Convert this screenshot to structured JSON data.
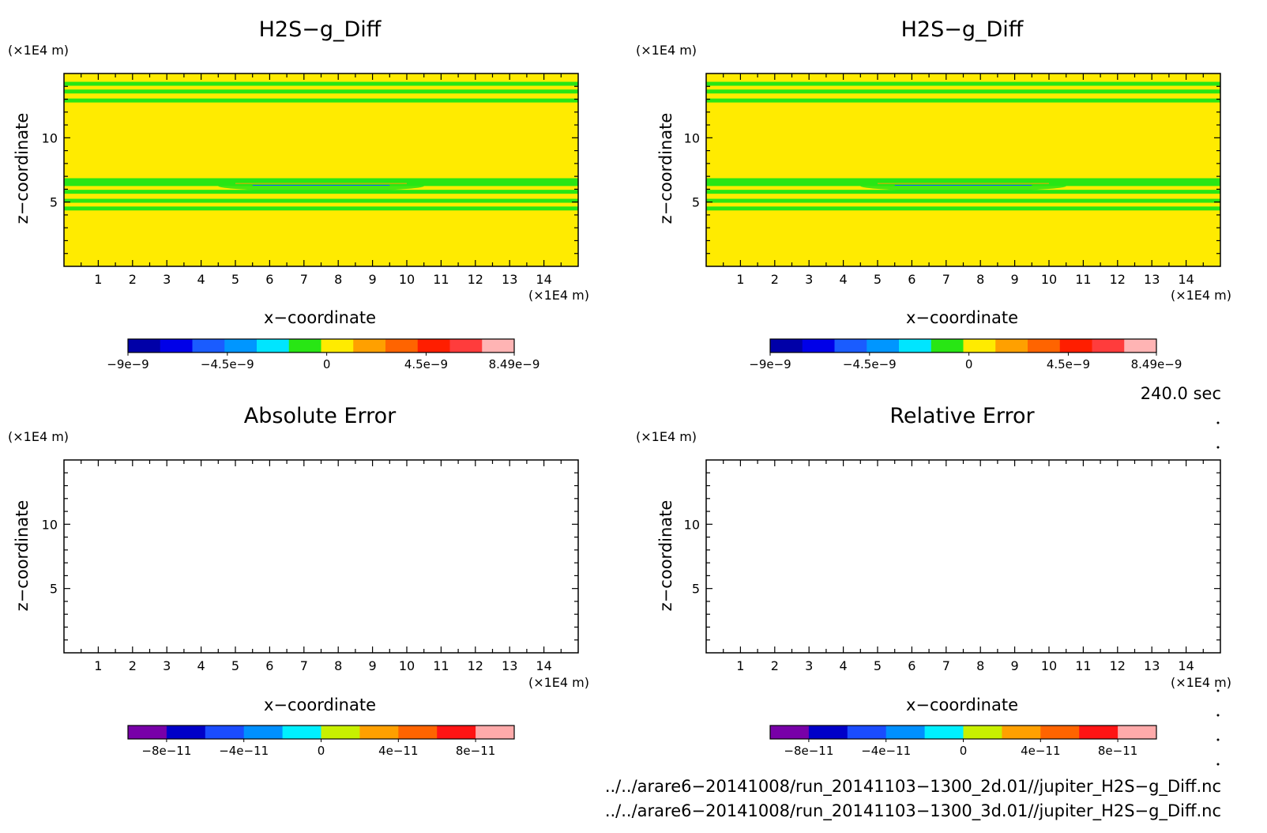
{
  "panels": [
    {
      "title": "H2S−g_Diff",
      "unit_y": "(×1E4 m)",
      "unit_x": "(×1E4 m)",
      "xlabel": "x−coordinate",
      "ylabel": "z−coordinate",
      "colorbar_labels": [
        "−9e−9",
        "−4.5e−9",
        "0",
        "4.5e−9",
        "8.49e−9"
      ]
    },
    {
      "title": "H2S−g_Diff",
      "unit_y": "(×1E4 m)",
      "unit_x": "(×1E4 m)",
      "xlabel": "x−coordinate",
      "ylabel": "z−coordinate",
      "colorbar_labels": [
        "−9e−9",
        "−4.5e−9",
        "0",
        "4.5e−9",
        "8.49e−9"
      ]
    },
    {
      "title": "Absolute Error",
      "unit_y": "(×1E4 m)",
      "unit_x": "(×1E4 m)",
      "xlabel": "x−coordinate",
      "ylabel": "z−coordinate",
      "colorbar_labels": [
        "−8e−11",
        "−4e−11",
        "0",
        "4e−11",
        "8e−11"
      ]
    },
    {
      "title": "Relative Error",
      "unit_y": "(×1E4 m)",
      "unit_x": "(×1E4 m)",
      "xlabel": "x−coordinate",
      "ylabel": "z−coordinate",
      "colorbar_labels": [
        "−8e−11",
        "−4e−11",
        "0",
        "4e−11",
        "8e−11"
      ]
    }
  ],
  "time_label": "240.0 sec",
  "file_paths": [
    "../../arare6−20141008/run_20141103−1300_2d.01//jupiter_H2S−g_Diff.nc",
    "../../arare6−20141008/run_20141103−1300_3d.01//jupiter_H2S−g_Diff.nc"
  ],
  "chart_data": [
    {
      "type": "heatmap",
      "title": "H2S−g_Diff",
      "xlabel": "x−coordinate",
      "ylabel": "z−coordinate",
      "x_unit": "(×1E4 m)",
      "z_unit": "(×1E4 m)",
      "xlim": [
        0,
        15
      ],
      "zlim": [
        0,
        15
      ],
      "x_ticks": [
        1,
        2,
        3,
        4,
        5,
        6,
        7,
        8,
        9,
        10,
        11,
        12,
        13,
        14
      ],
      "z_ticks": [
        5,
        10
      ],
      "background_value": "0",
      "contour_bands_z": [
        4.5,
        5.1,
        5.8,
        6.4,
        6.7,
        12.9,
        13.6,
        14.2
      ],
      "colorbar": {
        "min": -9e-09,
        "max": 8.49e-09,
        "labels": [
          "−9e−9",
          "−4.5e−9",
          "0",
          "4.5e−9",
          "8.49e−9"
        ],
        "colors": [
          "#0000a8",
          "#0000e8",
          "#1a5cff",
          "#0096ff",
          "#00e5ff",
          "#28e614",
          "#ffeb00",
          "#ffa000",
          "#ff6400",
          "#ff1e00",
          "#ff3c3c",
          "#ffb4b4"
        ]
      }
    },
    {
      "type": "heatmap",
      "title": "H2S−g_Diff",
      "xlabel": "x−coordinate",
      "ylabel": "z−coordinate",
      "x_unit": "(×1E4 m)",
      "z_unit": "(×1E4 m)",
      "xlim": [
        0,
        15
      ],
      "zlim": [
        0,
        15
      ],
      "x_ticks": [
        1,
        2,
        3,
        4,
        5,
        6,
        7,
        8,
        9,
        10,
        11,
        12,
        13,
        14
      ],
      "z_ticks": [
        5,
        10
      ],
      "background_value": "0",
      "contour_bands_z": [
        4.5,
        5.1,
        5.8,
        6.4,
        6.7,
        12.9,
        13.6,
        14.2
      ],
      "colorbar": {
        "min": -9e-09,
        "max": 8.49e-09,
        "labels": [
          "−9e−9",
          "−4.5e−9",
          "0",
          "4.5e−9",
          "8.49e−9"
        ],
        "colors": [
          "#0000a8",
          "#0000e8",
          "#1a5cff",
          "#0096ff",
          "#00e5ff",
          "#28e614",
          "#ffeb00",
          "#ffa000",
          "#ff6400",
          "#ff1e00",
          "#ff3c3c",
          "#ffb4b4"
        ]
      }
    },
    {
      "type": "heatmap",
      "title": "Absolute Error",
      "xlabel": "x−coordinate",
      "ylabel": "z−coordinate",
      "x_unit": "(×1E4 m)",
      "z_unit": "(×1E4 m)",
      "xlim": [
        0,
        15
      ],
      "zlim": [
        0,
        15
      ],
      "x_ticks": [
        1,
        2,
        3,
        4,
        5,
        6,
        7,
        8,
        9,
        10,
        11,
        12,
        13,
        14
      ],
      "z_ticks": [
        5,
        10
      ],
      "values": [],
      "colorbar": {
        "min": -1e-10,
        "max": 1e-10,
        "labels": [
          "−8e−11",
          "−4e−11",
          "0",
          "4e−11",
          "8e−11"
        ],
        "colors": [
          "#7800a8",
          "#0000c8",
          "#1a4cff",
          "#0090ff",
          "#00f0ff",
          "#c8f000",
          "#ffa000",
          "#ff6400",
          "#ff1414",
          "#ffaaaa"
        ]
      }
    },
    {
      "type": "heatmap",
      "title": "Relative Error",
      "xlabel": "x−coordinate",
      "ylabel": "z−coordinate",
      "x_unit": "(×1E4 m)",
      "z_unit": "(×1E4 m)",
      "xlim": [
        0,
        15
      ],
      "zlim": [
        0,
        15
      ],
      "x_ticks": [
        1,
        2,
        3,
        4,
        5,
        6,
        7,
        8,
        9,
        10,
        11,
        12,
        13,
        14
      ],
      "z_ticks": [
        5,
        10
      ],
      "values": [],
      "colorbar": {
        "min": -1e-10,
        "max": 1e-10,
        "labels": [
          "−8e−11",
          "−4e−11",
          "0",
          "4e−11",
          "8e−11"
        ],
        "colors": [
          "#7800a8",
          "#0000c8",
          "#1a4cff",
          "#0090ff",
          "#00f0ff",
          "#c8f000",
          "#ffa000",
          "#ff6400",
          "#ff1414",
          "#ffaaaa"
        ]
      }
    }
  ]
}
